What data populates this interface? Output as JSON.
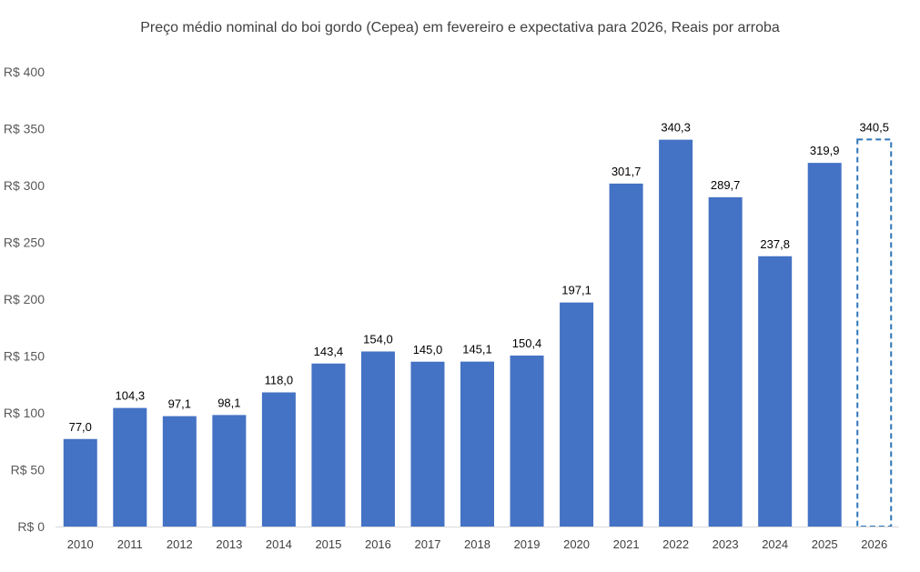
{
  "chart_data": {
    "type": "bar",
    "title": "Preço médio nominal do boi gordo (Cepea) em fevereiro e expectativa para 2026, Reais por arroba",
    "categories": [
      "2010",
      "2011",
      "2012",
      "2013",
      "2014",
      "2015",
      "2016",
      "2017",
      "2018",
      "2019",
      "2020",
      "2021",
      "2022",
      "2023",
      "2024",
      "2025",
      "2026"
    ],
    "values": [
      77.0,
      104.3,
      97.1,
      98.1,
      118.0,
      143.4,
      154.0,
      145.0,
      145.1,
      150.4,
      197.1,
      301.7,
      340.3,
      289.7,
      237.8,
      319.9,
      340.5
    ],
    "data_labels": [
      "77,0",
      "104,3",
      "97,1",
      "98,1",
      "118,0",
      "143,4",
      "154,0",
      "145,0",
      "145,1",
      "150,4",
      "197,1",
      "301,7",
      "340,3",
      "289,7",
      "237,8",
      "319,9",
      "340,5"
    ],
    "projected": [
      false,
      false,
      false,
      false,
      false,
      false,
      false,
      false,
      false,
      false,
      false,
      false,
      false,
      false,
      false,
      false,
      true
    ],
    "y_ticks": [
      "R$ 0",
      "R$ 50",
      "R$ 100",
      "R$ 150",
      "R$ 200",
      "R$ 250",
      "R$ 300",
      "R$ 350",
      "R$ 400"
    ],
    "ylim": [
      0,
      400
    ],
    "xlabel": "",
    "ylabel": "",
    "grid": false,
    "legend": "none",
    "colors": {
      "bar": "#4472C4",
      "projected_outline": "#2E75B6",
      "axis": "#D9D9D9"
    }
  }
}
